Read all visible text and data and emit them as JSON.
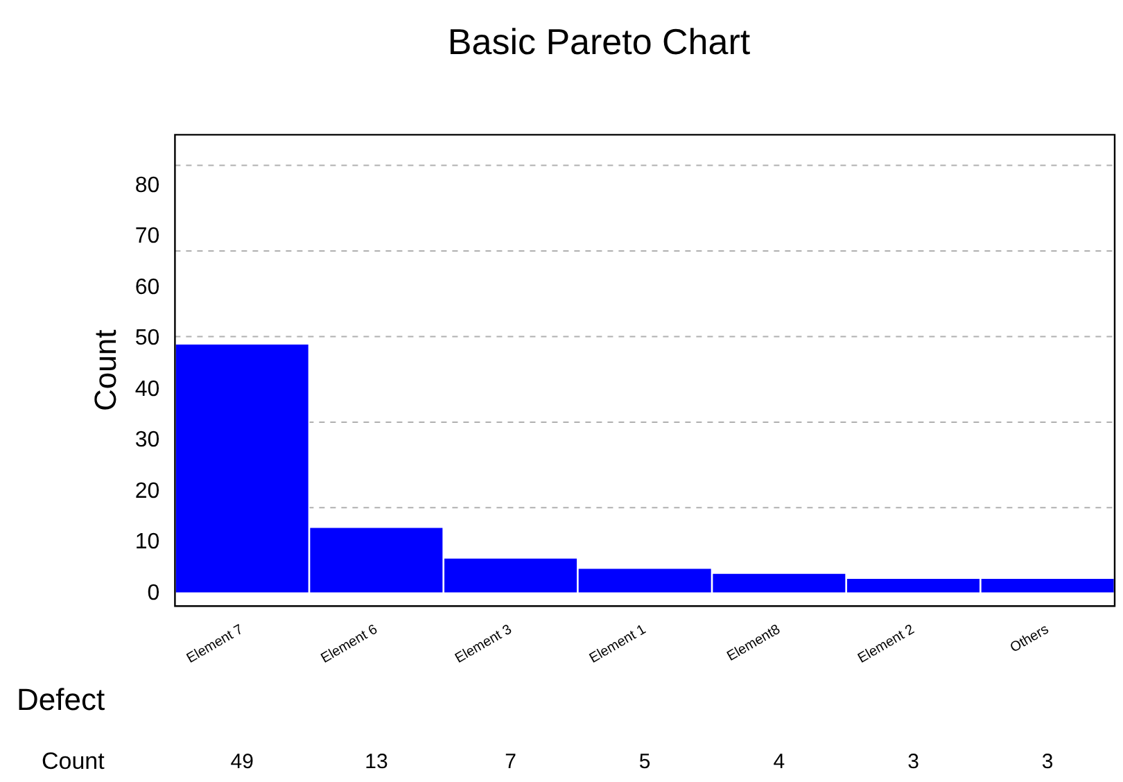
{
  "chart_data": {
    "type": "bar",
    "title": "Basic Pareto Chart",
    "xlabel": "Defect",
    "ylabel": "Count",
    "categories": [
      "Element 7",
      "Element 6",
      "Element 3",
      "Element 1",
      "Element8",
      "Element 2",
      "Others"
    ],
    "values": [
      49,
      13,
      7,
      5,
      4,
      3,
      3
    ],
    "color": "#0000ff",
    "ylim": [
      -2.5,
      90
    ],
    "yticks": [
      0,
      10,
      20,
      30,
      40,
      50,
      60,
      70,
      80
    ],
    "grid": false,
    "legend": false,
    "data_labels": true,
    "annotations": [
      "Count"
    ],
    "ref_lines": [
      {
        "axis": "y",
        "value": 84,
        "color": "#b0b0b0",
        "line_style": "dashed"
      },
      {
        "axis": "y",
        "value": 67.2,
        "color": "#b0b0b0",
        "line_style": "dashed"
      },
      {
        "axis": "y",
        "value": 50.4,
        "color": "#b0b0b0",
        "line_style": "dashed"
      },
      {
        "axis": "y",
        "value": 33.6,
        "color": "#b0b0b0",
        "line_style": "dashed"
      },
      {
        "axis": "y",
        "value": 16.8,
        "color": "#b0b0b0",
        "line_style": "dashed"
      }
    ]
  }
}
